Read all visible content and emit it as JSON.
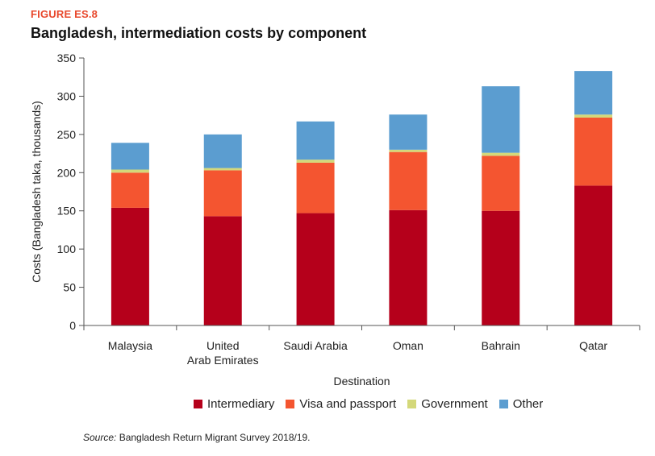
{
  "figure_label": "FIGURE ES.8",
  "figure_title": "Bangladesh, intermediation costs by component",
  "source": {
    "prefix": "Source:",
    "text": "Bangladesh Return Migrant Survey 2018/19."
  },
  "chart_data": {
    "type": "bar",
    "stacked": true,
    "title": "Bangladesh, intermediation costs by component",
    "xlabel": "Destination",
    "ylabel": "Costs (Bangladesh taka, thousands)",
    "ylim": [
      0,
      350
    ],
    "yticks": [
      0,
      50,
      100,
      150,
      200,
      250,
      300,
      350
    ],
    "categories": [
      [
        "Malaysia"
      ],
      [
        "United",
        "Arab Emirates"
      ],
      [
        "Saudi Arabia"
      ],
      [
        "Oman"
      ],
      [
        "Bahrain"
      ],
      [
        "Qatar"
      ]
    ],
    "series": [
      {
        "name": "Intermediary",
        "color": "#b5001b",
        "values": [
          154,
          143,
          147,
          151,
          150,
          183
        ]
      },
      {
        "name": "Visa and passport",
        "color": "#f45530",
        "values": [
          46,
          60,
          66,
          76,
          72,
          89
        ]
      },
      {
        "name": "Government",
        "color": "#d4d87a",
        "values": [
          4,
          3,
          4,
          3,
          4,
          4
        ]
      },
      {
        "name": "Other",
        "color": "#5b9dd0",
        "values": [
          35,
          44,
          50,
          46,
          87,
          57
        ]
      }
    ],
    "legend_position": "bottom"
  }
}
